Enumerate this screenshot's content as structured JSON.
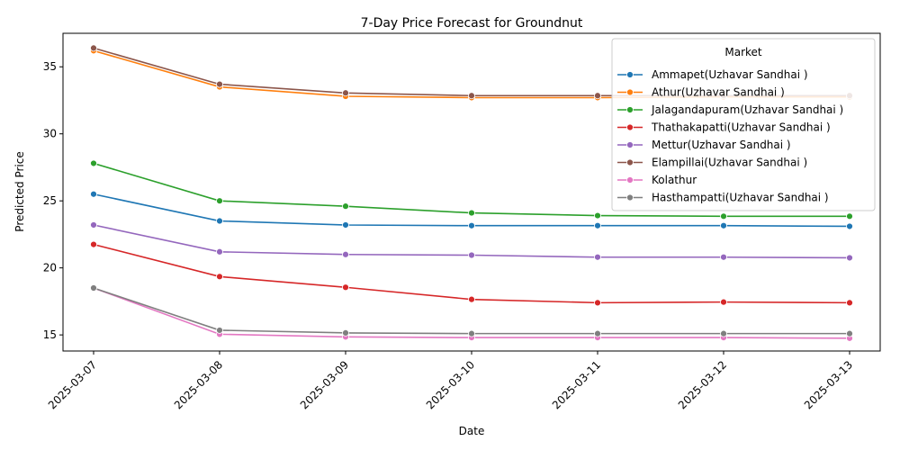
{
  "chart_data": {
    "type": "line",
    "title": "7-Day Price Forecast for Groundnut",
    "xlabel": "Date",
    "ylabel": "Predicted Price",
    "x": [
      "2025-03-07",
      "2025-03-08",
      "2025-03-09",
      "2025-03-10",
      "2025-03-11",
      "2025-03-12",
      "2025-03-13"
    ],
    "yticks": [
      15,
      20,
      25,
      30,
      35
    ],
    "ylim": [
      13.8,
      37.5
    ],
    "legend_title": "Market",
    "legend_position": "top-right",
    "grid": false,
    "series": [
      {
        "name": "Ammapet(Uzhavar Sandhai )",
        "color": "#1f77b4",
        "values": [
          25.5,
          23.5,
          23.2,
          23.15,
          23.15,
          23.15,
          23.1
        ]
      },
      {
        "name": "Athur(Uzhavar Sandhai )",
        "color": "#ff7f0e",
        "values": [
          36.2,
          33.5,
          32.8,
          32.7,
          32.7,
          32.75,
          32.75
        ]
      },
      {
        "name": "Jalagandapuram(Uzhavar Sandhai )",
        "color": "#2ca02c",
        "values": [
          27.8,
          25.0,
          24.6,
          24.1,
          23.9,
          23.85,
          23.85
        ]
      },
      {
        "name": "Thathakapatti(Uzhavar Sandhai )",
        "color": "#d62728",
        "values": [
          21.75,
          19.35,
          18.55,
          17.65,
          17.4,
          17.45,
          17.4
        ]
      },
      {
        "name": "Mettur(Uzhavar Sandhai )",
        "color": "#9467bd",
        "values": [
          23.2,
          21.2,
          21.0,
          20.95,
          20.8,
          20.8,
          20.75
        ]
      },
      {
        "name": "Elampillai(Uzhavar Sandhai )",
        "color": "#8c564b",
        "values": [
          36.4,
          33.7,
          33.05,
          32.85,
          32.85,
          32.85,
          32.85
        ]
      },
      {
        "name": "Kolathur",
        "color": "#e377c2",
        "values": [
          18.5,
          15.05,
          14.85,
          14.8,
          14.8,
          14.8,
          14.75
        ]
      },
      {
        "name": "Hasthampatti(Uzhavar Sandhai )",
        "color": "#7f7f7f",
        "values": [
          18.5,
          15.35,
          15.15,
          15.1,
          15.1,
          15.1,
          15.1
        ]
      }
    ]
  }
}
